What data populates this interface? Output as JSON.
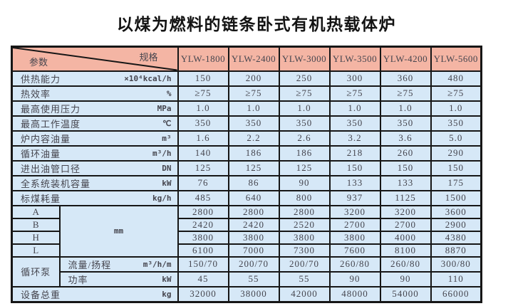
{
  "page_title": "以煤为燃料的链条卧式有机热载体炉",
  "colors": {
    "header_bg": "#f4b5a4",
    "body_bg": "#d6e8f7",
    "border": "#161616",
    "text": "#45454e"
  },
  "table": {
    "corner": {
      "spec_label": "规格",
      "param_label": "参数"
    },
    "models": [
      "YLW-1800",
      "YLW-2400",
      "YLW-3000",
      "YLW-3500",
      "YLW-4200",
      "YLW-5600"
    ],
    "param_rows": [
      {
        "label": "供热能力",
        "unit": "×10⁴kcal/h",
        "values": [
          "150",
          "200",
          "250",
          "300",
          "360",
          "480"
        ]
      },
      {
        "label": "热效率",
        "unit": "%",
        "values": [
          "≥75",
          "≥75",
          "≥75",
          "≥75",
          "≥75",
          "≥75"
        ]
      },
      {
        "label": "最高使用压力",
        "unit": "MPa",
        "values": [
          "1.0",
          "1.0",
          "1.0",
          "1.0",
          "1.0",
          "1.0"
        ]
      },
      {
        "label": "最高工作温度",
        "unit": "℃",
        "values": [
          "350",
          "350",
          "350",
          "350",
          "350",
          "350"
        ]
      },
      {
        "label": "炉内容油量",
        "unit": "m³",
        "values": [
          "1.6",
          "2.2",
          "2.6",
          "3.2",
          "3.6",
          "5.0"
        ]
      },
      {
        "label": "循环油量",
        "unit": "m³/h",
        "values": [
          "140",
          "186",
          "186",
          "218",
          "260",
          "290"
        ]
      },
      {
        "label": "进出油管口径",
        "unit": "DN",
        "values": [
          "125",
          "125",
          "125",
          "150",
          "150",
          "150"
        ]
      },
      {
        "label": "全系统装机容量",
        "unit": "kW",
        "values": [
          "76",
          "86",
          "90",
          "133",
          "133",
          "175"
        ]
      },
      {
        "label": "标煤耗量",
        "unit": "kg/h",
        "values": [
          "485",
          "640",
          "800",
          "937",
          "1125",
          "1500"
        ]
      }
    ],
    "dimensions": {
      "unit": "mm",
      "rows": [
        {
          "label": "A",
          "values": [
            "2800",
            "2800",
            "2800",
            "3200",
            "3200",
            "3600"
          ]
        },
        {
          "label": "B",
          "values": [
            "2420",
            "2420",
            "2520",
            "2700",
            "2700",
            "2900"
          ]
        },
        {
          "label": "H",
          "values": [
            "3800",
            "3800",
            "3800",
            "3800",
            "4000",
            "4380"
          ]
        },
        {
          "label": "L",
          "values": [
            "6100",
            "7000",
            "7300",
            "7600",
            "8100",
            "8870"
          ]
        }
      ]
    },
    "pump": {
      "label": "循环泵",
      "rows": [
        {
          "label": "流量/扬程",
          "unit": "m³/h/m",
          "values": [
            "150/70",
            "200/70",
            "200/70",
            "260/80",
            "260/80",
            "300/80"
          ]
        },
        {
          "label": "功率",
          "unit": "kW",
          "values": [
            "45",
            "55",
            "55",
            "90",
            "90",
            "110"
          ]
        }
      ]
    },
    "total_row": {
      "label": "设备总重",
      "unit": "kg",
      "values": [
        "32000",
        "38000",
        "42000",
        "48000",
        "54000",
        "66000"
      ]
    }
  }
}
